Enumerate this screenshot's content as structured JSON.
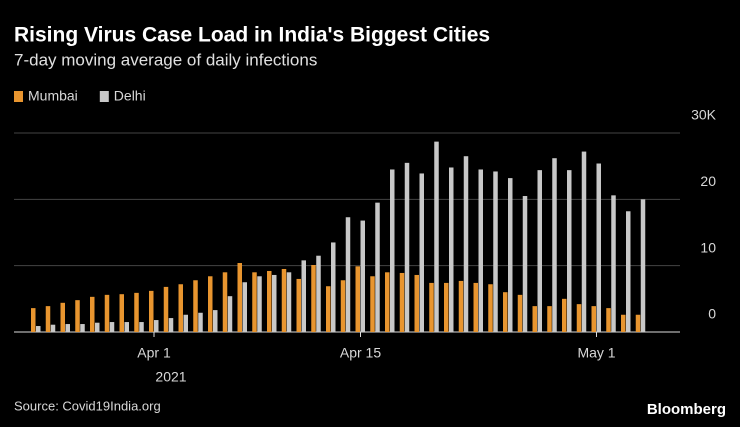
{
  "chart_data": {
    "type": "bar",
    "title": "Rising Virus Case Load in India's Biggest Cities",
    "subtitle": "7-day moving average of daily infections",
    "categories": [
      null,
      null,
      null,
      null,
      null,
      null,
      null,
      null,
      "Apr 1",
      null,
      null,
      null,
      null,
      null,
      null,
      null,
      null,
      null,
      null,
      null,
      null,
      null,
      "Apr 15",
      null,
      null,
      null,
      null,
      null,
      null,
      null,
      null,
      null,
      null,
      null,
      null,
      null,
      null,
      null,
      "May 1",
      null,
      null,
      null
    ],
    "x_sublabel": "2021",
    "series": [
      {
        "name": "Mumbai",
        "color": "#e8952f",
        "values": [
          3.6,
          3.9,
          4.4,
          4.8,
          5.3,
          5.6,
          5.7,
          5.9,
          6.2,
          6.8,
          7.2,
          7.8,
          8.4,
          9.0,
          10.4,
          9.0,
          9.2,
          9.5,
          8.0,
          10.1,
          6.9,
          7.8,
          9.9,
          8.4,
          9.0,
          8.9,
          8.6,
          7.4,
          7.4,
          7.7,
          7.4,
          7.2,
          6.0,
          5.6,
          3.9,
          3.9,
          5.0,
          4.2,
          3.9,
          3.6,
          2.6,
          2.6
        ]
      },
      {
        "name": "Delhi",
        "color": "#c8c8c8",
        "values": [
          0.9,
          1.1,
          1.2,
          1.2,
          1.4,
          1.5,
          1.5,
          1.5,
          1.8,
          2.1,
          2.6,
          2.9,
          3.3,
          5.4,
          7.5,
          8.4,
          8.6,
          9.0,
          10.8,
          11.5,
          13.5,
          17.3,
          16.8,
          19.5,
          24.5,
          25.5,
          23.9,
          28.7,
          24.8,
          26.5,
          24.5,
          24.2,
          23.2,
          20.5,
          24.4,
          26.2,
          24.4,
          27.2,
          25.4,
          20.6,
          18.2,
          20.0
        ]
      }
    ],
    "ylim": [
      0,
      30
    ],
    "yticks": [
      0,
      10,
      20,
      {
        "value": 30,
        "label": "30K"
      }
    ],
    "grid": true,
    "source": "Source: Covid19India.org",
    "brand": "Bloomberg"
  }
}
